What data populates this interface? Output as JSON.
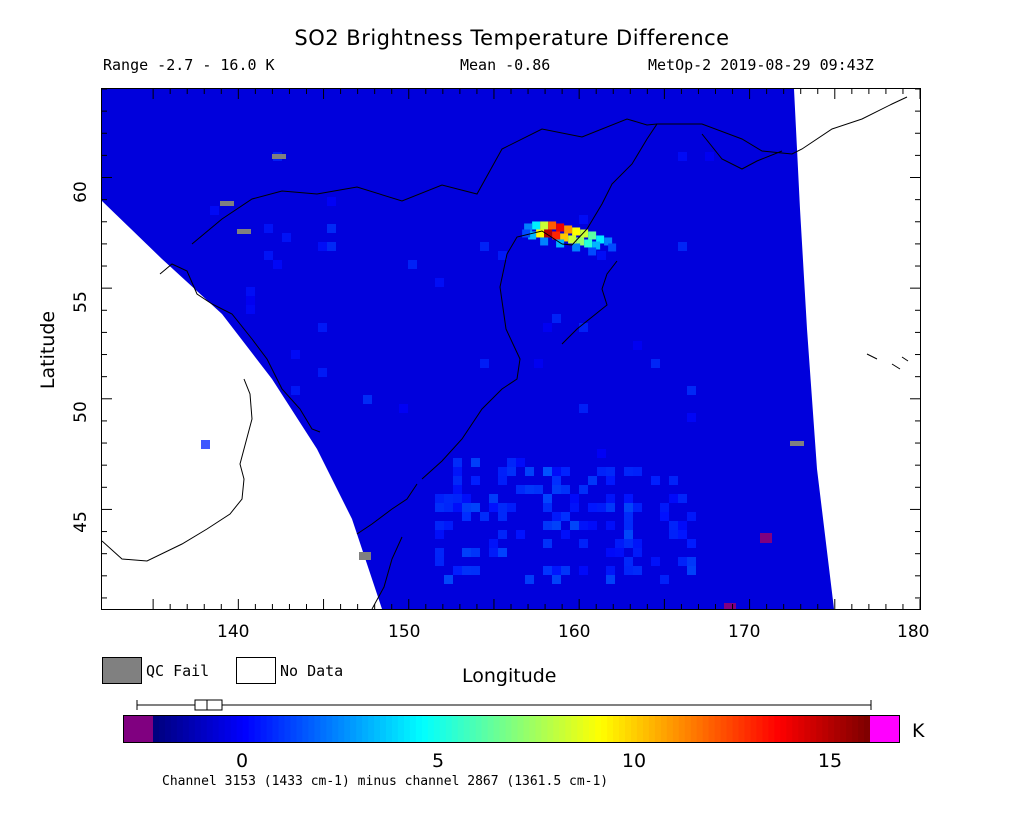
{
  "title": "SO2 Brightness Temperature Difference",
  "subtitle": {
    "range": "Range -2.7 - 16.0 K",
    "mean": "Mean -0.86",
    "source": "MetOp-2 2019-08-29 09:43Z"
  },
  "map": {
    "x_axis_label": "Longitude",
    "y_axis_label": "Latitude",
    "lon_range": [
      132,
      180
    ],
    "lat_range": [
      40.5,
      64
    ],
    "x_ticks": [
      "140",
      "150",
      "160",
      "170",
      "180"
    ],
    "x_tick_values": [
      140,
      150,
      160,
      170,
      180
    ],
    "y_ticks": [
      "45",
      "50",
      "55",
      "60"
    ],
    "y_tick_values": [
      45,
      50,
      55,
      60
    ],
    "background_value_K": -1,
    "plume": {
      "location": "Kamchatka",
      "center_lon": 159,
      "center_lat": 57.2,
      "peak_K": 15
    },
    "qc_fail_color": "#808080",
    "no_data_color": "#ffffff"
  },
  "legend": {
    "qc_fail": "QC Fail",
    "no_data": "No Data"
  },
  "colorbar": {
    "unit": "K",
    "ticks": [
      "0",
      "5",
      "10",
      "15"
    ],
    "tick_values": [
      0,
      5,
      10,
      15
    ],
    "min": -2.7,
    "max": 16.0,
    "under_color": "#800080",
    "over_color": "#ff00ff",
    "box_whisker": {
      "min": -2.7,
      "q1": -1.5,
      "median": -0.86,
      "q3": -0.3,
      "max": 16.0
    }
  },
  "footnote": "Channel 3153 (1433 cm-1) minus channel 2867 (1361.5 cm-1)"
}
